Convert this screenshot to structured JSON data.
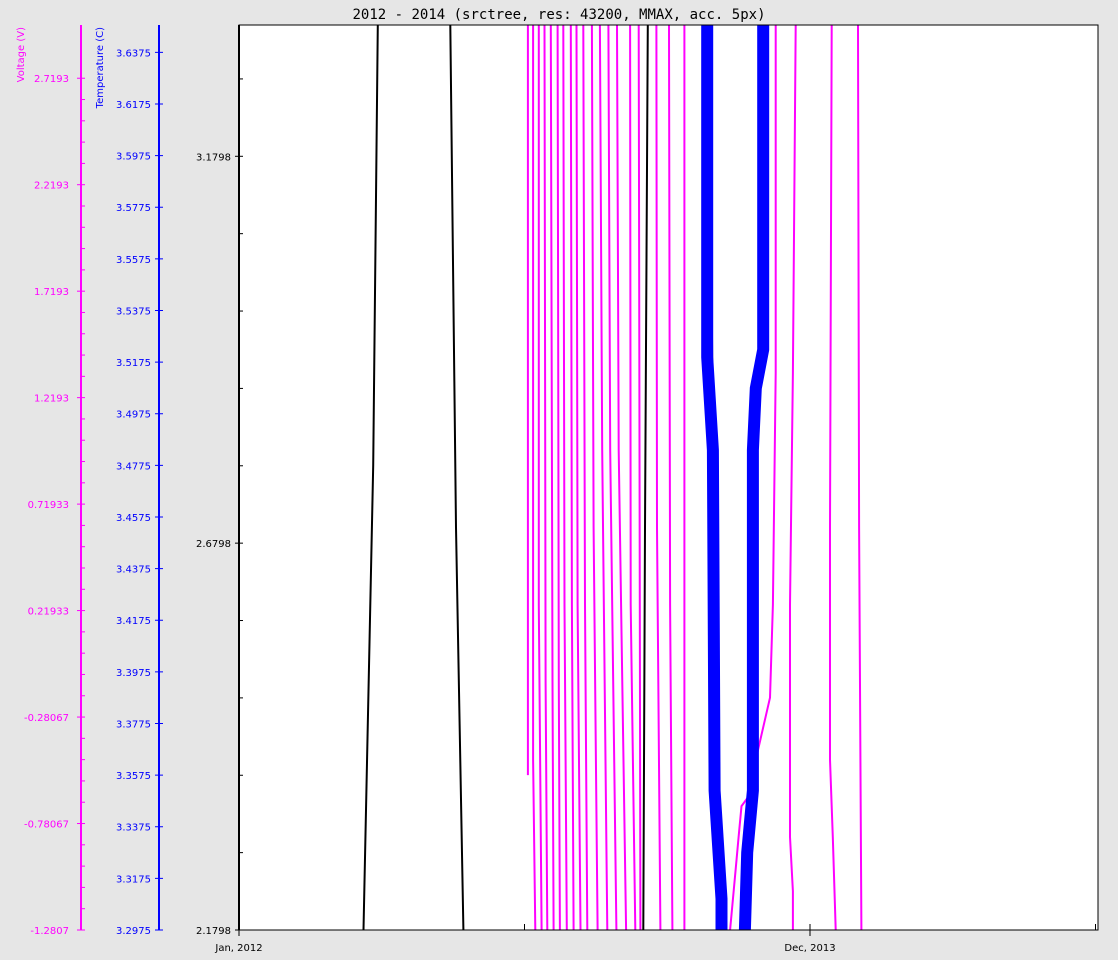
{
  "chart_data": {
    "type": "line",
    "title": "2012 - 2014 (srctree, res: 43200, MMAX, acc. 5px)",
    "x_axis": {
      "tick_labels": [
        "Jan, 2012",
        "Dec, 2013"
      ],
      "minor_ticks": 3
    },
    "y_axes": [
      {
        "name": "Voltage (V)",
        "color": "#ff00ff",
        "range": [
          -1.2807,
          2.9693
        ],
        "ticks": [
          -1.2807,
          -0.78067,
          -0.28067,
          0.21933,
          0.71933,
          1.2193,
          1.7193,
          2.2193,
          2.7193
        ],
        "tick_labels": [
          "-1.2807",
          "-0.78067",
          "-0.28067",
          "0.21933",
          "0.71933",
          "1.2193",
          "1.7193",
          "2.2193",
          "2.7193"
        ]
      },
      {
        "name": "Temperature (C)",
        "color": "#0000ff",
        "range": [
          3.2975,
          3.6481
        ],
        "ticks": [
          3.2975,
          3.3175,
          3.3375,
          3.3575,
          3.3775,
          3.3975,
          3.4175,
          3.4375,
          3.4575,
          3.4775,
          3.4975,
          3.5175,
          3.5375,
          3.5575,
          3.5775,
          3.5975,
          3.6175,
          3.6375
        ],
        "tick_labels": [
          "3.2975",
          "3.3175",
          "3.3375",
          "3.3575",
          "3.3775",
          "3.3975",
          "3.4175",
          "3.4375",
          "3.4575",
          "3.4775",
          "3.4975",
          "3.5175",
          "3.5375",
          "3.5575",
          "3.5775",
          "3.5975",
          "3.6175",
          "3.6375"
        ]
      },
      {
        "name": "",
        "color": "#000000",
        "range": [
          2.1798,
          3.3495
        ],
        "ticks": [
          2.1798,
          2.6798,
          3.1798
        ],
        "tick_labels": [
          "2.1798",
          "2.6798",
          "3.1798"
        ]
      }
    ],
    "series": [
      {
        "color": "#000000",
        "width": 2,
        "points": [
          [
            0.243,
            3.35
          ],
          [
            0.235,
            2.78
          ],
          [
            0.218,
            2.18
          ]
        ]
      },
      {
        "color": "#000000",
        "width": 2,
        "points": [
          [
            0.37,
            3.35
          ],
          [
            0.38,
            2.7
          ],
          [
            0.393,
            2.18
          ]
        ]
      },
      {
        "color": "#000000",
        "width": 2,
        "points": [
          [
            0.716,
            3.35
          ],
          [
            0.711,
            2.7
          ],
          [
            0.708,
            2.18
          ]
        ]
      },
      {
        "color": "#000000",
        "width": 2,
        "points": [
          [
            0.824,
            3.35
          ],
          [
            0.83,
            2.8
          ],
          [
            0.84,
            2.42
          ],
          [
            0.843,
            2.18
          ]
        ]
      },
      {
        "color": "#ff00ff",
        "width": 2,
        "points": [
          [
            0.506,
            3.35
          ],
          [
            0.506,
            2.38
          ]
        ]
      },
      {
        "color": "#ff00ff",
        "width": 2,
        "points": [
          [
            0.515,
            3.35
          ],
          [
            0.515,
            2.4
          ],
          [
            0.519,
            2.18
          ]
        ]
      },
      {
        "color": "#ff00ff",
        "width": 2,
        "points": [
          [
            0.525,
            3.35
          ],
          [
            0.525,
            2.6
          ],
          [
            0.53,
            2.18
          ]
        ]
      },
      {
        "color": "#ff00ff",
        "width": 2,
        "points": [
          [
            0.535,
            3.35
          ],
          [
            0.537,
            2.5
          ],
          [
            0.54,
            2.18
          ]
        ]
      },
      {
        "color": "#ff00ff",
        "width": 2,
        "points": [
          [
            0.546,
            3.35
          ],
          [
            0.549,
            2.5
          ],
          [
            0.551,
            2.18
          ]
        ]
      },
      {
        "color": "#ff00ff",
        "width": 2,
        "points": [
          [
            0.558,
            3.35
          ],
          [
            0.56,
            2.5
          ],
          [
            0.562,
            2.18
          ]
        ]
      },
      {
        "color": "#ff00ff",
        "width": 2,
        "points": [
          [
            0.568,
            3.35
          ],
          [
            0.57,
            2.6
          ],
          [
            0.574,
            2.18
          ]
        ]
      },
      {
        "color": "#ff00ff",
        "width": 2,
        "points": [
          [
            0.581,
            3.35
          ],
          [
            0.583,
            2.6
          ],
          [
            0.586,
            2.18
          ]
        ]
      },
      {
        "color": "#ff00ff",
        "width": 2,
        "points": [
          [
            0.591,
            3.35
          ],
          [
            0.593,
            2.6
          ],
          [
            0.598,
            2.18
          ]
        ]
      },
      {
        "color": "#ff00ff",
        "width": 2,
        "points": [
          [
            0.603,
            3.35
          ],
          [
            0.606,
            2.6
          ],
          [
            0.61,
            2.18
          ]
        ]
      },
      {
        "color": "#ff00ff",
        "width": 2,
        "points": [
          [
            0.618,
            3.35
          ],
          [
            0.621,
            2.7
          ],
          [
            0.628,
            2.18
          ]
        ]
      },
      {
        "color": "#ff00ff",
        "width": 2,
        "points": [
          [
            0.632,
            3.35
          ],
          [
            0.636,
            2.8
          ],
          [
            0.645,
            2.18
          ]
        ]
      },
      {
        "color": "#ff00ff",
        "width": 2,
        "points": [
          [
            0.647,
            3.35
          ],
          [
            0.65,
            2.8
          ],
          [
            0.661,
            2.18
          ]
        ]
      },
      {
        "color": "#ff00ff",
        "width": 2,
        "points": [
          [
            0.662,
            3.35
          ],
          [
            0.665,
            2.8
          ],
          [
            0.678,
            2.18
          ]
        ]
      },
      {
        "color": "#ff00ff",
        "width": 2,
        "points": [
          [
            0.685,
            3.35
          ],
          [
            0.686,
            2.6
          ],
          [
            0.694,
            2.18
          ]
        ]
      },
      {
        "color": "#ff00ff",
        "width": 2,
        "points": [
          [
            0.7,
            3.35
          ],
          [
            0.702,
            2.6
          ],
          [
            0.703,
            2.18
          ]
        ]
      },
      {
        "color": "#ff00ff",
        "width": 2,
        "points": [
          [
            0.731,
            3.35
          ],
          [
            0.732,
            2.7
          ],
          [
            0.738,
            2.18
          ]
        ]
      },
      {
        "color": "#ff00ff",
        "width": 2,
        "points": [
          [
            0.753,
            3.35
          ],
          [
            0.755,
            2.6
          ],
          [
            0.759,
            2.18
          ]
        ]
      },
      {
        "color": "#ff00ff",
        "width": 2,
        "points": [
          [
            0.78,
            3.35
          ],
          [
            0.78,
            2.7
          ],
          [
            0.78,
            2.18
          ]
        ]
      },
      {
        "color": "#ff00ff",
        "width": 2,
        "points": [
          [
            0.94,
            3.35
          ],
          [
            0.94,
            2.9
          ],
          [
            0.935,
            2.6
          ],
          [
            0.93,
            2.48
          ],
          [
            0.905,
            2.4
          ],
          [
            0.9,
            2.36
          ],
          [
            0.88,
            2.34
          ],
          [
            0.875,
            2.3
          ],
          [
            0.87,
            2.26
          ],
          [
            0.86,
            2.18
          ]
        ]
      },
      {
        "color": "#ff00ff",
        "width": 2,
        "points": [
          [
            0.975,
            3.35
          ],
          [
            0.97,
            2.9
          ],
          [
            0.965,
            2.6
          ],
          [
            0.965,
            2.3
          ],
          [
            0.97,
            2.23
          ],
          [
            0.97,
            2.18
          ]
        ]
      },
      {
        "color": "#ff00ff",
        "width": 2,
        "points": [
          [
            1.038,
            3.35
          ],
          [
            1.035,
            2.7
          ],
          [
            1.035,
            2.4
          ],
          [
            1.04,
            2.3
          ],
          [
            1.045,
            2.18
          ]
        ]
      },
      {
        "color": "#ff00ff",
        "width": 2,
        "points": [
          [
            1.084,
            3.35
          ],
          [
            1.086,
            2.7
          ],
          [
            1.09,
            2.18
          ]
        ]
      },
      {
        "color": "#0000ff",
        "width": 12,
        "points": [
          [
            0.82,
            3.35
          ],
          [
            0.82,
            2.92
          ],
          [
            0.83,
            2.8
          ],
          [
            0.833,
            2.36
          ],
          [
            0.845,
            2.22
          ],
          [
            0.845,
            2.18
          ]
        ]
      },
      {
        "color": "#0000ff",
        "width": 12,
        "points": [
          [
            0.918,
            3.35
          ],
          [
            0.918,
            2.93
          ],
          [
            0.905,
            2.88
          ],
          [
            0.9,
            2.8
          ],
          [
            0.9,
            2.36
          ],
          [
            0.89,
            2.28
          ],
          [
            0.886,
            2.18
          ]
        ]
      }
    ]
  }
}
